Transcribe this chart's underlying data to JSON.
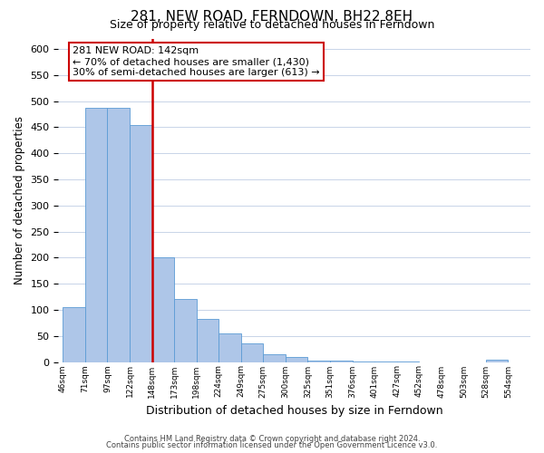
{
  "title": "281, NEW ROAD, FERNDOWN, BH22 8EH",
  "subtitle": "Size of property relative to detached houses in Ferndown",
  "xlabel": "Distribution of detached houses by size in Ferndown",
  "ylabel": "Number of detached properties",
  "bin_labels": [
    "46sqm",
    "71sqm",
    "97sqm",
    "122sqm",
    "148sqm",
    "173sqm",
    "198sqm",
    "224sqm",
    "249sqm",
    "275sqm",
    "300sqm",
    "325sqm",
    "351sqm",
    "376sqm",
    "401sqm",
    "427sqm",
    "452sqm",
    "478sqm",
    "503sqm",
    "528sqm",
    "554sqm"
  ],
  "bar_values": [
    105,
    487,
    487,
    454,
    201,
    120,
    82,
    55,
    35,
    15,
    10,
    3,
    3,
    1,
    1,
    1,
    0,
    0,
    0,
    5,
    0
  ],
  "bar_color": "#aec6e8",
  "bar_edge_color": "#5b9bd5",
  "vline_color": "#cc0000",
  "ylim": [
    0,
    620
  ],
  "yticks": [
    0,
    50,
    100,
    150,
    200,
    250,
    300,
    350,
    400,
    450,
    500,
    550,
    600
  ],
  "annotation_title": "281 NEW ROAD: 142sqm",
  "annotation_line1": "← 70% of detached houses are smaller (1,430)",
  "annotation_line2": "30% of semi-detached houses are larger (613) →",
  "box_color": "#ffffff",
  "box_edge_color": "#cc0000",
  "footer1": "Contains HM Land Registry data © Crown copyright and database right 2024.",
  "footer2": "Contains public sector information licensed under the Open Government Licence v3.0."
}
